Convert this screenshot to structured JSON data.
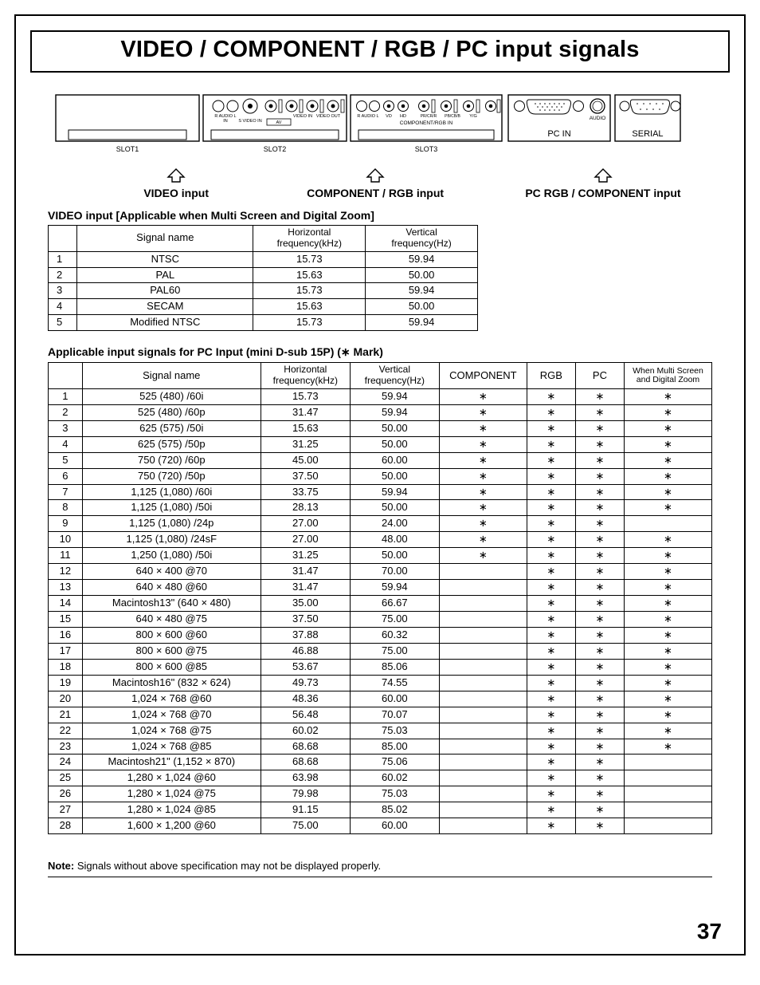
{
  "page": {
    "title": "VIDEO / COMPONENT / RGB / PC input signals",
    "number": "37",
    "note_label": "Note:",
    "note_text": " Signals without above specification may not be displayed properly."
  },
  "diagram": {
    "slot1": "SLOT1",
    "slot2": "SLOT2",
    "slot3": "SLOT3",
    "audio_rl": "R   AUDIO   L",
    "audio_in": "IN",
    "svideo": "S VIDEO IN",
    "av": "AV",
    "video_in": "VIDEO IN",
    "video_out": "VIDEO OUT",
    "vd": "VD",
    "hd": "HD",
    "pr": "PR/CR/R",
    "pb": "PB/CB/B",
    "yg": "Y/G",
    "comp_rgb_in": "COMPONENT/RGB IN",
    "pc_in": "PC    IN",
    "audio": "AUDIO",
    "serial": "SERIAL"
  },
  "arrows": {
    "video": "VIDEO input",
    "comp": "COMPONENT / RGB input",
    "pc": "PC RGB / COMPONENT input"
  },
  "table1": {
    "title": "VIDEO input [Applicable when Multi Screen and Digital Zoom]",
    "headers": {
      "signal": "Signal name",
      "hf": "Horizontal\nfrequency(kHz)",
      "vf": "Vertical\nfrequency(Hz)"
    },
    "rows": [
      {
        "n": "1",
        "name": "NTSC",
        "hf": "15.73",
        "vf": "59.94"
      },
      {
        "n": "2",
        "name": "PAL",
        "hf": "15.63",
        "vf": "50.00"
      },
      {
        "n": "3",
        "name": "PAL60",
        "hf": "15.73",
        "vf": "59.94"
      },
      {
        "n": "4",
        "name": "SECAM",
        "hf": "15.63",
        "vf": "50.00"
      },
      {
        "n": "5",
        "name": "Modified NTSC",
        "hf": "15.73",
        "vf": "59.94"
      }
    ]
  },
  "table2": {
    "title": "Applicable input signals for PC Input (mini D-sub 15P) (∗ Mark)",
    "headers": {
      "signal": "Signal name",
      "hf": "Horizontal\nfrequency(kHz)",
      "vf": "Vertical\nfrequency(Hz)",
      "comp": "COMPONENT",
      "rgb": "RGB",
      "pc": "PC",
      "multi": "When Multi Screen\nand Digital Zoom"
    },
    "mark": "∗",
    "rows": [
      {
        "n": "1",
        "name": "525 (480) /60i",
        "hf": "15.73",
        "vf": "59.94",
        "c": "∗",
        "r": "∗",
        "p": "∗",
        "m": "∗"
      },
      {
        "n": "2",
        "name": "525 (480) /60p",
        "hf": "31.47",
        "vf": "59.94",
        "c": "∗",
        "r": "∗",
        "p": "∗",
        "m": "∗"
      },
      {
        "n": "3",
        "name": "625 (575) /50i",
        "hf": "15.63",
        "vf": "50.00",
        "c": "∗",
        "r": "∗",
        "p": "∗",
        "m": "∗"
      },
      {
        "n": "4",
        "name": "625 (575) /50p",
        "hf": "31.25",
        "vf": "50.00",
        "c": "∗",
        "r": "∗",
        "p": "∗",
        "m": "∗"
      },
      {
        "n": "5",
        "name": "750 (720) /60p",
        "hf": "45.00",
        "vf": "60.00",
        "c": "∗",
        "r": "∗",
        "p": "∗",
        "m": "∗"
      },
      {
        "n": "6",
        "name": "750 (720) /50p",
        "hf": "37.50",
        "vf": "50.00",
        "c": "∗",
        "r": "∗",
        "p": "∗",
        "m": "∗"
      },
      {
        "n": "7",
        "name": "1,125 (1,080) /60i",
        "hf": "33.75",
        "vf": "59.94",
        "c": "∗",
        "r": "∗",
        "p": "∗",
        "m": "∗"
      },
      {
        "n": "8",
        "name": "1,125 (1,080) /50i",
        "hf": "28.13",
        "vf": "50.00",
        "c": "∗",
        "r": "∗",
        "p": "∗",
        "m": "∗"
      },
      {
        "n": "9",
        "name": "1,125 (1,080) /24p",
        "hf": "27.00",
        "vf": "24.00",
        "c": "∗",
        "r": "∗",
        "p": "∗",
        "m": ""
      },
      {
        "n": "10",
        "name": "1,125 (1,080) /24sF",
        "hf": "27.00",
        "vf": "48.00",
        "c": "∗",
        "r": "∗",
        "p": "∗",
        "m": "∗"
      },
      {
        "n": "11",
        "name": "1,250 (1,080) /50i",
        "hf": "31.25",
        "vf": "50.00",
        "c": "∗",
        "r": "∗",
        "p": "∗",
        "m": "∗"
      },
      {
        "n": "12",
        "name": "640 × 400 @70",
        "hf": "31.47",
        "vf": "70.00",
        "c": "",
        "r": "∗",
        "p": "∗",
        "m": "∗"
      },
      {
        "n": "13",
        "name": "640 × 480 @60",
        "hf": "31.47",
        "vf": "59.94",
        "c": "",
        "r": "∗",
        "p": "∗",
        "m": "∗"
      },
      {
        "n": "14",
        "name": "Macintosh13\" (640 × 480)",
        "hf": "35.00",
        "vf": "66.67",
        "c": "",
        "r": "∗",
        "p": "∗",
        "m": "∗"
      },
      {
        "n": "15",
        "name": "640 × 480 @75",
        "hf": "37.50",
        "vf": "75.00",
        "c": "",
        "r": "∗",
        "p": "∗",
        "m": "∗"
      },
      {
        "n": "16",
        "name": "800 × 600 @60",
        "hf": "37.88",
        "vf": "60.32",
        "c": "",
        "r": "∗",
        "p": "∗",
        "m": "∗"
      },
      {
        "n": "17",
        "name": "800 × 600 @75",
        "hf": "46.88",
        "vf": "75.00",
        "c": "",
        "r": "∗",
        "p": "∗",
        "m": "∗"
      },
      {
        "n": "18",
        "name": "800 × 600 @85",
        "hf": "53.67",
        "vf": "85.06",
        "c": "",
        "r": "∗",
        "p": "∗",
        "m": "∗"
      },
      {
        "n": "19",
        "name": "Macintosh16\" (832 × 624)",
        "hf": "49.73",
        "vf": "74.55",
        "c": "",
        "r": "∗",
        "p": "∗",
        "m": "∗"
      },
      {
        "n": "20",
        "name": "1,024 × 768 @60",
        "hf": "48.36",
        "vf": "60.00",
        "c": "",
        "r": "∗",
        "p": "∗",
        "m": "∗"
      },
      {
        "n": "21",
        "name": "1,024 × 768 @70",
        "hf": "56.48",
        "vf": "70.07",
        "c": "",
        "r": "∗",
        "p": "∗",
        "m": "∗"
      },
      {
        "n": "22",
        "name": "1,024 × 768 @75",
        "hf": "60.02",
        "vf": "75.03",
        "c": "",
        "r": "∗",
        "p": "∗",
        "m": "∗"
      },
      {
        "n": "23",
        "name": "1,024 × 768 @85",
        "hf": "68.68",
        "vf": "85.00",
        "c": "",
        "r": "∗",
        "p": "∗",
        "m": "∗"
      },
      {
        "n": "24",
        "name": "Macintosh21\" (1,152 × 870)",
        "hf": "68.68",
        "vf": "75.06",
        "c": "",
        "r": "∗",
        "p": "∗",
        "m": ""
      },
      {
        "n": "25",
        "name": "1,280 × 1,024 @60",
        "hf": "63.98",
        "vf": "60.02",
        "c": "",
        "r": "∗",
        "p": "∗",
        "m": ""
      },
      {
        "n": "26",
        "name": "1,280 × 1,024 @75",
        "hf": "79.98",
        "vf": "75.03",
        "c": "",
        "r": "∗",
        "p": "∗",
        "m": ""
      },
      {
        "n": "27",
        "name": "1,280 × 1,024 @85",
        "hf": "91.15",
        "vf": "85.02",
        "c": "",
        "r": "∗",
        "p": "∗",
        "m": ""
      },
      {
        "n": "28",
        "name": "1,600 × 1,200 @60",
        "hf": "75.00",
        "vf": "60.00",
        "c": "",
        "r": "∗",
        "p": "∗",
        "m": ""
      }
    ]
  },
  "styling": {
    "border_color": "#000000",
    "background": "#ffffff",
    "title_fontsize_pt": 22,
    "body_fontsize_pt": 10,
    "font_family": "Arial"
  }
}
